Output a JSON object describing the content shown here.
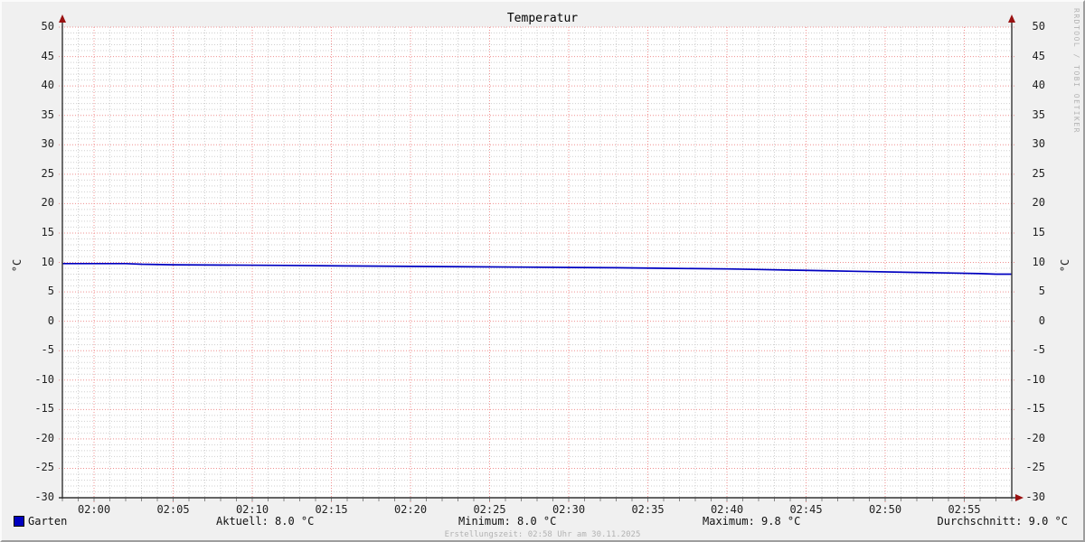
{
  "title": "Temperatur",
  "watermark": "RRDTOOL / TOBI OETIKER",
  "axis": {
    "ylabel_left": "°C",
    "ylabel_right": "°C"
  },
  "footer": {
    "legend_label": "Garten",
    "aktuell": "Aktuell: 8.0 °C",
    "minimum": "Minimum: 8.0 °C",
    "maximum": "Maximum: 9.8 °C",
    "durchschnitt": "Durchschnitt: 9.0 °C",
    "note": "Erstellungszeit: 02:58 Uhr am 30.11.2025"
  },
  "colors": {
    "background": "#f0f0f0",
    "canvas": "#ffffff",
    "grid_minor": "#cfcfcf",
    "grid_major": "#f09090",
    "axis": "#333333",
    "arrow": "#991111",
    "line": "#0000c0",
    "legend_swatch": "#0000c0"
  },
  "chart_data": {
    "type": "line",
    "title": "Temperatur",
    "ylabel": "°C",
    "ylim": [
      -30,
      50
    ],
    "y_major_step": 5,
    "y_minor_step": 1,
    "yticks": [
      50,
      45,
      40,
      35,
      30,
      25,
      20,
      15,
      10,
      5,
      0,
      -5,
      -10,
      -15,
      -20,
      -25,
      -30
    ],
    "x_range": [
      "01:58",
      "02:58"
    ],
    "x_major_step_min": 5,
    "x_minor_step_min": 1,
    "xticks": [
      "02:00",
      "02:05",
      "02:10",
      "02:15",
      "02:20",
      "02:25",
      "02:30",
      "02:35",
      "02:40",
      "02:45",
      "02:50",
      "02:55"
    ],
    "grid": true,
    "legend_position": "bottom",
    "series": [
      {
        "name": "Garten",
        "color": "#0000c0",
        "points": [
          [
            "01:58",
            9.8
          ],
          [
            "02:02",
            9.8
          ],
          [
            "02:03",
            9.7
          ],
          [
            "02:05",
            9.6
          ],
          [
            "02:12",
            9.5
          ],
          [
            "02:16",
            9.4
          ],
          [
            "02:22",
            9.3
          ],
          [
            "02:27",
            9.2
          ],
          [
            "02:33",
            9.1
          ],
          [
            "02:36",
            9.0
          ],
          [
            "02:40",
            8.9
          ],
          [
            "02:42",
            8.8
          ],
          [
            "02:44",
            8.7
          ],
          [
            "02:46",
            8.6
          ],
          [
            "02:48",
            8.5
          ],
          [
            "02:52",
            8.3
          ],
          [
            "02:54",
            8.2
          ],
          [
            "02:56",
            8.1
          ],
          [
            "02:57",
            8.0
          ],
          [
            "02:58",
            8.0
          ]
        ],
        "stats": {
          "current": 8.0,
          "min": 8.0,
          "max": 9.8,
          "avg": 9.0
        }
      }
    ]
  }
}
